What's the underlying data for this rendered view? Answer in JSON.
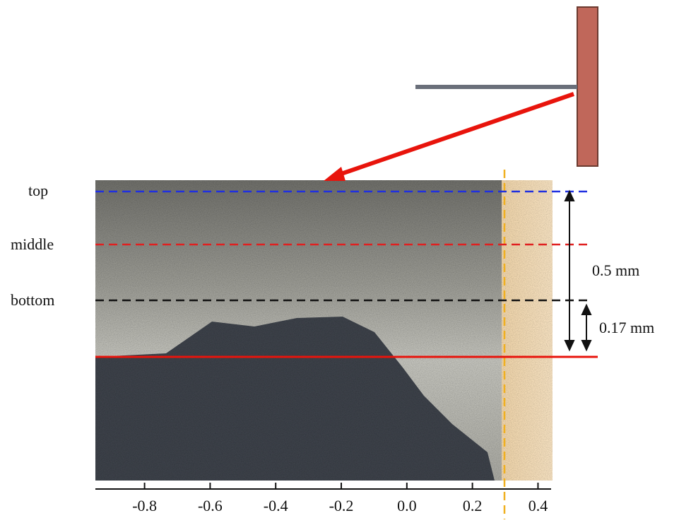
{
  "labels": {
    "top": "top",
    "middle": "middle",
    "bottom": "bottom",
    "depth": "0.5 mm",
    "offset": "0.17 mm"
  },
  "axis": {
    "xlim": [
      -0.95,
      0.44
    ],
    "ticks": [
      -0.8,
      -0.6,
      -0.4,
      -0.2,
      {
        "value": 0,
        "label": "0.0"
      },
      0.2,
      0.4
    ]
  }
}
